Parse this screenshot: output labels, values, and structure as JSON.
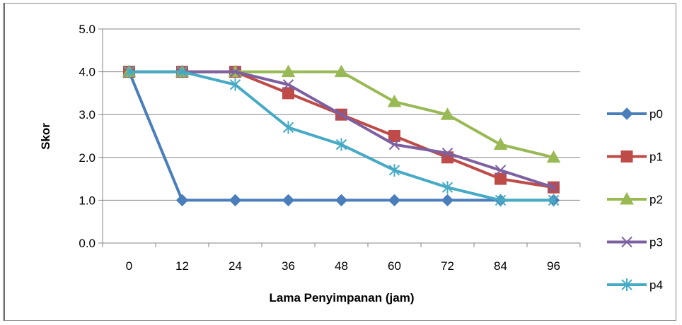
{
  "chart_data": {
    "type": "line",
    "title": "",
    "xlabel": "Lama Penyimpanan (jam)",
    "ylabel": "Skor",
    "categories": [
      "0",
      "12",
      "24",
      "36",
      "48",
      "60",
      "72",
      "84",
      "96"
    ],
    "ylim": [
      0,
      5
    ],
    "yticks": [
      "0.0",
      "1.0",
      "2.0",
      "3.0",
      "4.0",
      "5.0"
    ],
    "grid": "horizontal",
    "legend_position": "right",
    "series": [
      {
        "name": "p0",
        "color": "#4a7ebb",
        "marker": "diamond",
        "values": [
          4.0,
          1.0,
          1.0,
          1.0,
          1.0,
          1.0,
          1.0,
          1.0,
          1.0
        ]
      },
      {
        "name": "p1",
        "color": "#be4b48",
        "marker": "square",
        "values": [
          4.0,
          4.0,
          4.0,
          3.5,
          3.0,
          2.5,
          2.0,
          1.5,
          1.3
        ]
      },
      {
        "name": "p2",
        "color": "#98b954",
        "marker": "triangle",
        "values": [
          4.0,
          4.0,
          4.0,
          4.0,
          4.0,
          3.3,
          3.0,
          2.3,
          2.0
        ]
      },
      {
        "name": "p3",
        "color": "#7d60a0",
        "marker": "x",
        "values": [
          4.0,
          4.0,
          4.0,
          3.7,
          3.0,
          2.3,
          2.1,
          1.7,
          1.3
        ]
      },
      {
        "name": "p4",
        "color": "#46aac5",
        "marker": "asterisk",
        "values": [
          4.0,
          4.0,
          3.7,
          2.7,
          2.3,
          1.7,
          1.3,
          1.0,
          1.0
        ]
      }
    ]
  }
}
